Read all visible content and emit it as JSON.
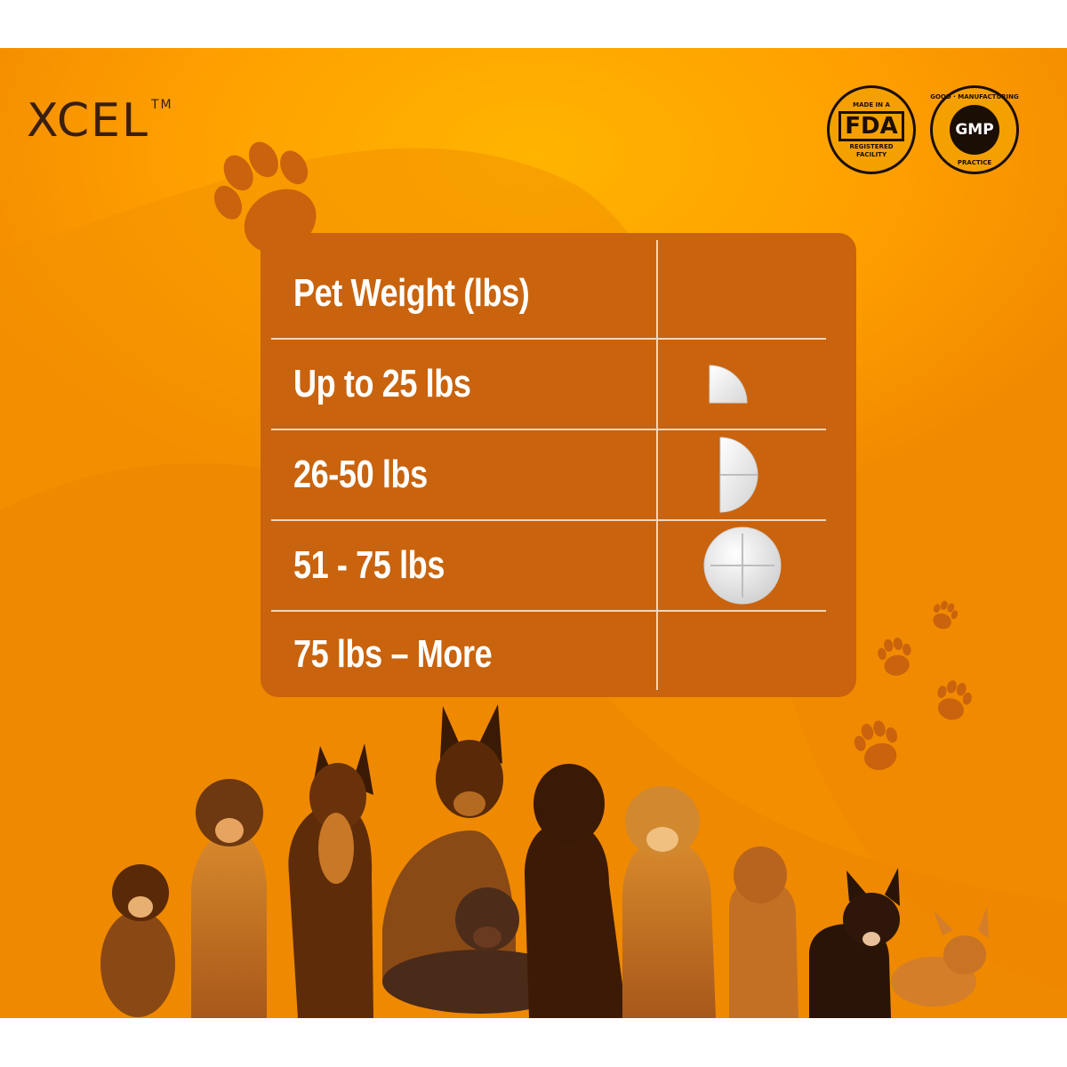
{
  "brand": {
    "name": "XCEL",
    "trademark": "TM"
  },
  "badges": {
    "fda": {
      "top": "MADE IN A",
      "mark": "FDA",
      "bottom_1": "REGISTERED",
      "bottom_2": "FACILITY"
    },
    "gmp": {
      "top": "GOOD · MANUFACTURING",
      "core": "GMP",
      "bottom": "PRACTICE"
    }
  },
  "table": {
    "header": "Pet Weight (lbs)",
    "rows": [
      {
        "weight": "Up to 25 lbs",
        "dose_icon": "quarter-tablet-icon",
        "dose_fraction": 0.25
      },
      {
        "weight": "26-50 lbs",
        "dose_icon": "half-tablet-icon",
        "dose_fraction": 0.5
      },
      {
        "weight": "51 - 75 lbs",
        "dose_icon": "whole-tablet-icon",
        "dose_fraction": 1
      },
      {
        "weight": "75 lbs – More",
        "dose_icon": "",
        "dose_fraction": null
      }
    ]
  },
  "colors": {
    "background": "#ffa000",
    "table": "#c9630d",
    "paw": "#c9630d",
    "text": "#ffffff",
    "brand_text": "#3a1f10"
  }
}
